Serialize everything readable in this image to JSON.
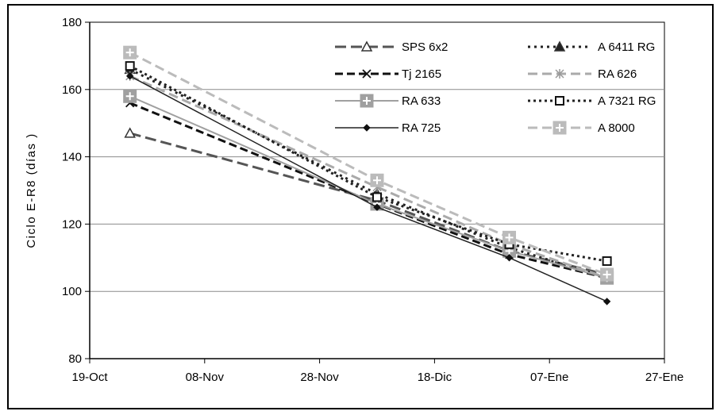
{
  "chart_data": {
    "type": "line",
    "title": "",
    "xlabel": "",
    "ylabel": "Ciclo E-R8 (días )",
    "ylim": [
      80,
      180
    ],
    "yticks": [
      80,
      100,
      120,
      140,
      160,
      180
    ],
    "xlim": [
      "19-Oct",
      "27-Ene"
    ],
    "xticks": [
      "19-Oct",
      "08-Nov",
      "28-Nov",
      "18-Dic",
      "07-Ene",
      "27-Ene"
    ],
    "x": [
      "26-Oct",
      "08-Dic",
      "31-Dic",
      "17-Ene"
    ],
    "grid": "horizontal",
    "legend_position": "top-right",
    "series": [
      {
        "name": "SPS 6x2",
        "values": [
          147,
          127,
          112,
          105
        ],
        "color": "#555555",
        "dash": "14 6",
        "width": 3,
        "marker": "triangle"
      },
      {
        "name": "A 6411 RG",
        "values": [
          166,
          129,
          113,
          104
        ],
        "color": "#222222",
        "dash": "3 5",
        "width": 3,
        "marker": "triangle-filled"
      },
      {
        "name": "Tj 2165",
        "values": [
          156,
          126,
          111,
          104
        ],
        "color": "#111111",
        "dash": "10 5",
        "width": 3,
        "marker": "x"
      },
      {
        "name": "RA 626",
        "values": [
          164,
          131,
          114,
          104
        ],
        "color": "#aaaaaa",
        "dash": "12 6",
        "width": 3,
        "marker": "star"
      },
      {
        "name": "RA 633",
        "values": [
          158,
          126,
          112,
          104
        ],
        "color": "#a0a0a0",
        "dash": "",
        "width": 2,
        "marker": "plus-square"
      },
      {
        "name": "A 7321 RG",
        "values": [
          167,
          128,
          114,
          109
        ],
        "color": "#222222",
        "dash": "3 4",
        "width": 3,
        "marker": "square"
      },
      {
        "name": "RA 725",
        "values": [
          164,
          125,
          110,
          97
        ],
        "color": "#222222",
        "dash": "",
        "width": 1.5,
        "marker": "diamond"
      },
      {
        "name": "A 8000",
        "values": [
          171,
          133,
          116,
          105
        ],
        "color": "#bbbbbb",
        "dash": "12 6",
        "width": 3,
        "marker": "plus-square"
      }
    ]
  }
}
